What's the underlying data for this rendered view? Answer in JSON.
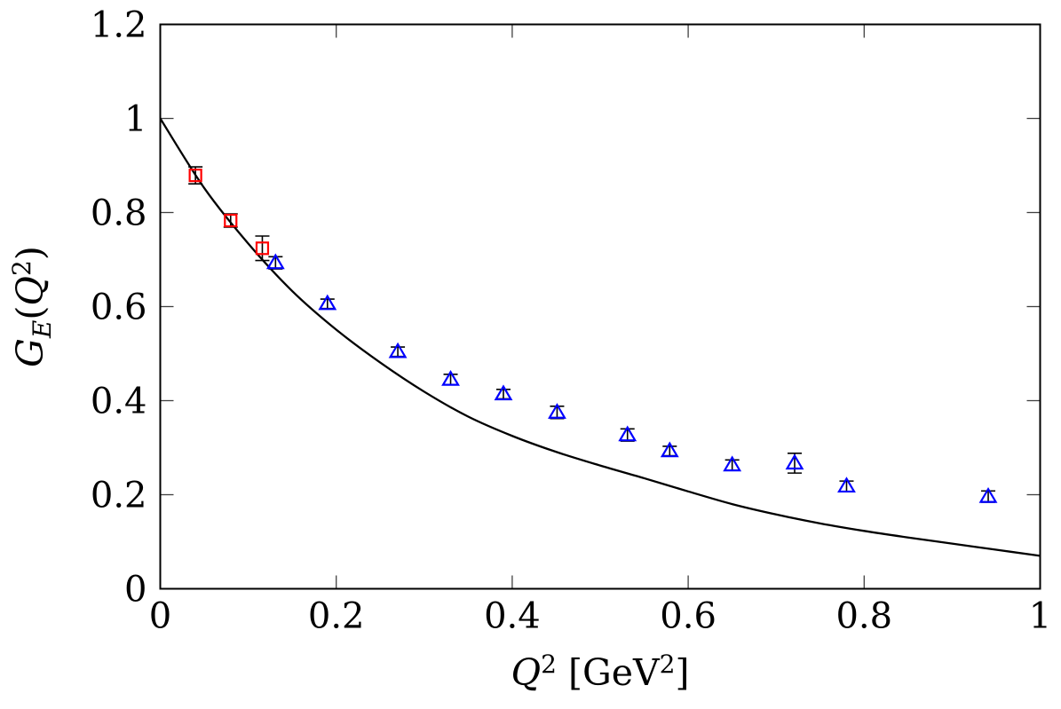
{
  "figure": {
    "background": "#ffffff",
    "frame_color": "#000000",
    "tick_color": "#404040"
  },
  "chart_data": {
    "type": "line+scatter",
    "title": "",
    "xlabel": "Q^2 [GeV^2]",
    "ylabel": "G_E(Q^2)",
    "xlabel_tokens": [
      {
        "t": "Q",
        "italic": true
      },
      {
        "t": "2",
        "script": "sup"
      },
      {
        "t": " [GeV"
      },
      {
        "t": "2",
        "script": "sup"
      },
      {
        "t": "]"
      }
    ],
    "ylabel_tokens": [
      {
        "t": "G",
        "italic": true
      },
      {
        "t": "E",
        "italic": true,
        "script": "sub"
      },
      {
        "t": "("
      },
      {
        "t": "Q",
        "italic": true
      },
      {
        "t": "2",
        "script": "sup"
      },
      {
        "t": ")"
      }
    ],
    "xlim": [
      0,
      1
    ],
    "ylim": [
      0,
      1.2
    ],
    "x_ticks": {
      "values": [
        0,
        0.2,
        0.4,
        0.6,
        0.8,
        1
      ],
      "labels": [
        "0",
        "0.2",
        "0.4",
        "0.6",
        "0.8",
        "1"
      ]
    },
    "y_ticks": {
      "values": [
        0,
        0.2,
        0.4,
        0.6,
        0.8,
        1,
        1.2
      ],
      "labels": [
        "0",
        "0.2",
        "0.4",
        "0.6",
        "0.8",
        "1",
        "1.2"
      ]
    },
    "grid": false,
    "legend": "none",
    "series": [
      {
        "name": "reference-curve",
        "type": "line",
        "color": "#000000",
        "points": [
          [
            0.0,
            1.0
          ],
          [
            0.05,
            0.852
          ],
          [
            0.1,
            0.734
          ],
          [
            0.15,
            0.633
          ],
          [
            0.2,
            0.551
          ],
          [
            0.25,
            0.481
          ],
          [
            0.3,
            0.419
          ],
          [
            0.35,
            0.366
          ],
          [
            0.4,
            0.325
          ],
          [
            0.45,
            0.291
          ],
          [
            0.5,
            0.262
          ],
          [
            0.55,
            0.235
          ],
          [
            0.6,
            0.207
          ],
          [
            0.65,
            0.18
          ],
          [
            0.7,
            0.158
          ],
          [
            0.75,
            0.139
          ],
          [
            0.8,
            0.123
          ],
          [
            0.85,
            0.109
          ],
          [
            0.9,
            0.096
          ],
          [
            0.95,
            0.083
          ],
          [
            1.0,
            0.07
          ]
        ]
      },
      {
        "name": "red-open-squares",
        "type": "scatter",
        "marker": "open-square",
        "color": "#ff0000",
        "error_color": "#000000",
        "points": [
          {
            "q": 0.04,
            "g": 0.879,
            "e": 0.018
          },
          {
            "q": 0.08,
            "g": 0.783,
            "e": 0.014
          },
          {
            "q": 0.116,
            "g": 0.724,
            "e": 0.026
          }
        ]
      },
      {
        "name": "blue-open-triangles",
        "type": "scatter",
        "marker": "open-triangle",
        "color": "#0000ff",
        "error_color": "#000000",
        "points": [
          {
            "q": 0.131,
            "g": 0.693,
            "e": 0.013
          },
          {
            "q": 0.19,
            "g": 0.606,
            "e": 0.01
          },
          {
            "q": 0.27,
            "g": 0.504,
            "e": 0.01
          },
          {
            "q": 0.33,
            "g": 0.445,
            "e": 0.011
          },
          {
            "q": 0.39,
            "g": 0.414,
            "e": 0.01
          },
          {
            "q": 0.451,
            "g": 0.375,
            "e": 0.013
          },
          {
            "q": 0.531,
            "g": 0.327,
            "e": 0.013
          },
          {
            "q": 0.579,
            "g": 0.293,
            "e": 0.01
          },
          {
            "q": 0.65,
            "g": 0.263,
            "e": 0.011
          },
          {
            "q": 0.721,
            "g": 0.267,
            "e": 0.021
          },
          {
            "q": 0.78,
            "g": 0.218,
            "e": 0.011
          },
          {
            "q": 0.941,
            "g": 0.196,
            "e": 0.012
          }
        ]
      }
    ]
  }
}
